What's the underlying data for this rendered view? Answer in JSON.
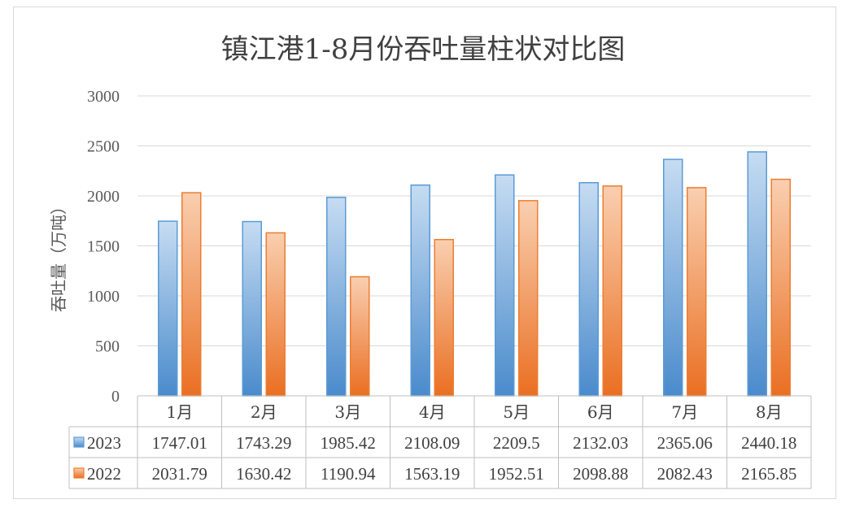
{
  "chart_data": {
    "type": "bar",
    "title": "镇江港1-8月份吞吐量柱状对比图",
    "ylabel": "吞吐量（万吨）",
    "xlabel": "",
    "categories": [
      "1月",
      "2月",
      "3月",
      "4月",
      "5月",
      "6月",
      "7月",
      "8月"
    ],
    "series": [
      {
        "name": "2023",
        "values": [
          1747.01,
          1743.29,
          1985.42,
          2108.09,
          2209.5,
          2132.03,
          2365.06,
          2440.18
        ],
        "labels": [
          "1747.01",
          "1743.29",
          "1985.42",
          "2108.09",
          "2209.5",
          "2132.03",
          "2365.06",
          "2440.18"
        ],
        "color": "#5b9bd5"
      },
      {
        "name": "2022",
        "values": [
          2031.79,
          1630.42,
          1190.94,
          1563.19,
          1952.51,
          2098.88,
          2082.43,
          2165.85
        ],
        "labels": [
          "2031.79",
          "1630.42",
          "1190.94",
          "1563.19",
          "1952.51",
          "2098.88",
          "2082.43",
          "2165.85"
        ],
        "color": "#ed7d31"
      }
    ],
    "ylim": [
      0,
      3000
    ],
    "yticks": [
      0,
      500,
      1000,
      1500,
      2000,
      2500,
      3000
    ],
    "ytick_labels": [
      "0",
      "500",
      "1000",
      "1500",
      "2000",
      "2500",
      "3000"
    ],
    "grid": true,
    "legend": "data-table"
  }
}
